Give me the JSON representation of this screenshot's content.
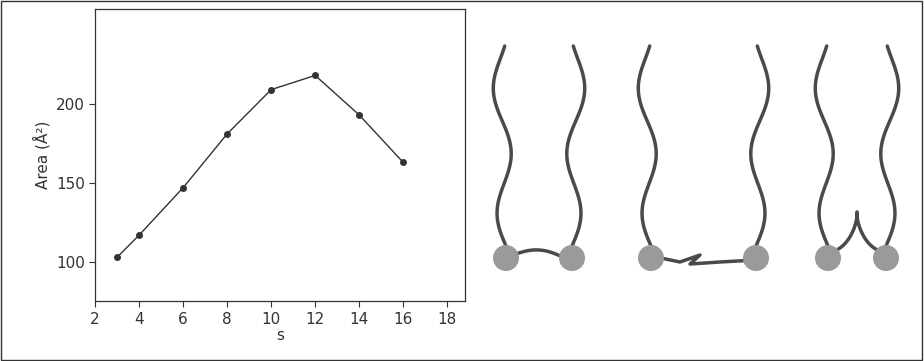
{
  "chart_data": {
    "type": "line",
    "x_label": "s",
    "y_label": "Area (Å²)",
    "x": [
      3,
      4,
      6,
      8,
      10,
      12,
      14,
      16
    ],
    "values": [
      103,
      117,
      147,
      181,
      209,
      218,
      193,
      163
    ],
    "color": "#333333",
    "marker": "o",
    "line_style": "solid",
    "xlim": [
      2,
      18.8
    ],
    "ylim": [
      75,
      260
    ],
    "xticks": [
      2,
      4,
      6,
      8,
      10,
      12,
      14,
      16,
      18
    ],
    "yticks": [
      100,
      150,
      200
    ],
    "grid": false
  }
}
